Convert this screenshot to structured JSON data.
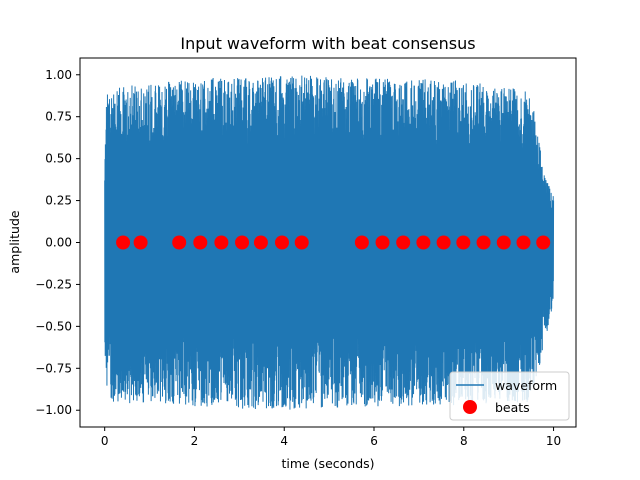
{
  "chart_data": {
    "type": "line",
    "title": "Input waveform with beat consensus",
    "xlabel": "time (seconds)",
    "ylabel": "amplitude",
    "xlim": [
      -0.55,
      10.5
    ],
    "ylim": [
      -1.1,
      1.1
    ],
    "xticks": [
      0,
      2,
      4,
      6,
      8,
      10
    ],
    "xtick_labels": [
      "0",
      "2",
      "4",
      "6",
      "8",
      "10"
    ],
    "yticks": [
      -1.0,
      -0.75,
      -0.5,
      -0.25,
      0.0,
      0.25,
      0.5,
      0.75,
      1.0
    ],
    "ytick_labels": [
      "−1.00",
      "−0.75",
      "−0.50",
      "−0.25",
      "0.00",
      "0.25",
      "0.50",
      "0.75",
      "1.00"
    ],
    "grid": false,
    "legend_position": "lower-right",
    "series": [
      {
        "name": "waveform",
        "kind": "waveform-line",
        "color": "#1f77b4",
        "x_range": [
          0,
          10
        ],
        "peak_amplitude": 1.0,
        "envelope": [
          {
            "x": 0.0,
            "upper": 0.55,
            "lower": -0.6
          },
          {
            "x": 0.05,
            "upper": 0.92,
            "lower": -0.95
          },
          {
            "x": 2.0,
            "upper": 0.98,
            "lower": -0.98
          },
          {
            "x": 4.0,
            "upper": 1.0,
            "lower": -1.0
          },
          {
            "x": 6.0,
            "upper": 0.98,
            "lower": -0.98
          },
          {
            "x": 8.0,
            "upper": 0.97,
            "lower": -0.97
          },
          {
            "x": 9.5,
            "upper": 0.9,
            "lower": -0.95
          },
          {
            "x": 9.8,
            "upper": 0.4,
            "lower": -0.6
          },
          {
            "x": 10.0,
            "upper": 0.3,
            "lower": -0.35
          }
        ]
      },
      {
        "name": "beats",
        "kind": "markers",
        "color": "#ff0000",
        "x": [
          0.41,
          0.8,
          1.66,
          2.13,
          2.6,
          3.06,
          3.48,
          3.95,
          4.39,
          5.73,
          6.19,
          6.65,
          7.1,
          7.55,
          7.99,
          8.44,
          8.89,
          9.33,
          9.77
        ],
        "y": [
          0,
          0,
          0,
          0,
          0,
          0,
          0,
          0,
          0,
          0,
          0,
          0,
          0,
          0,
          0,
          0,
          0,
          0,
          0
        ]
      }
    ]
  }
}
